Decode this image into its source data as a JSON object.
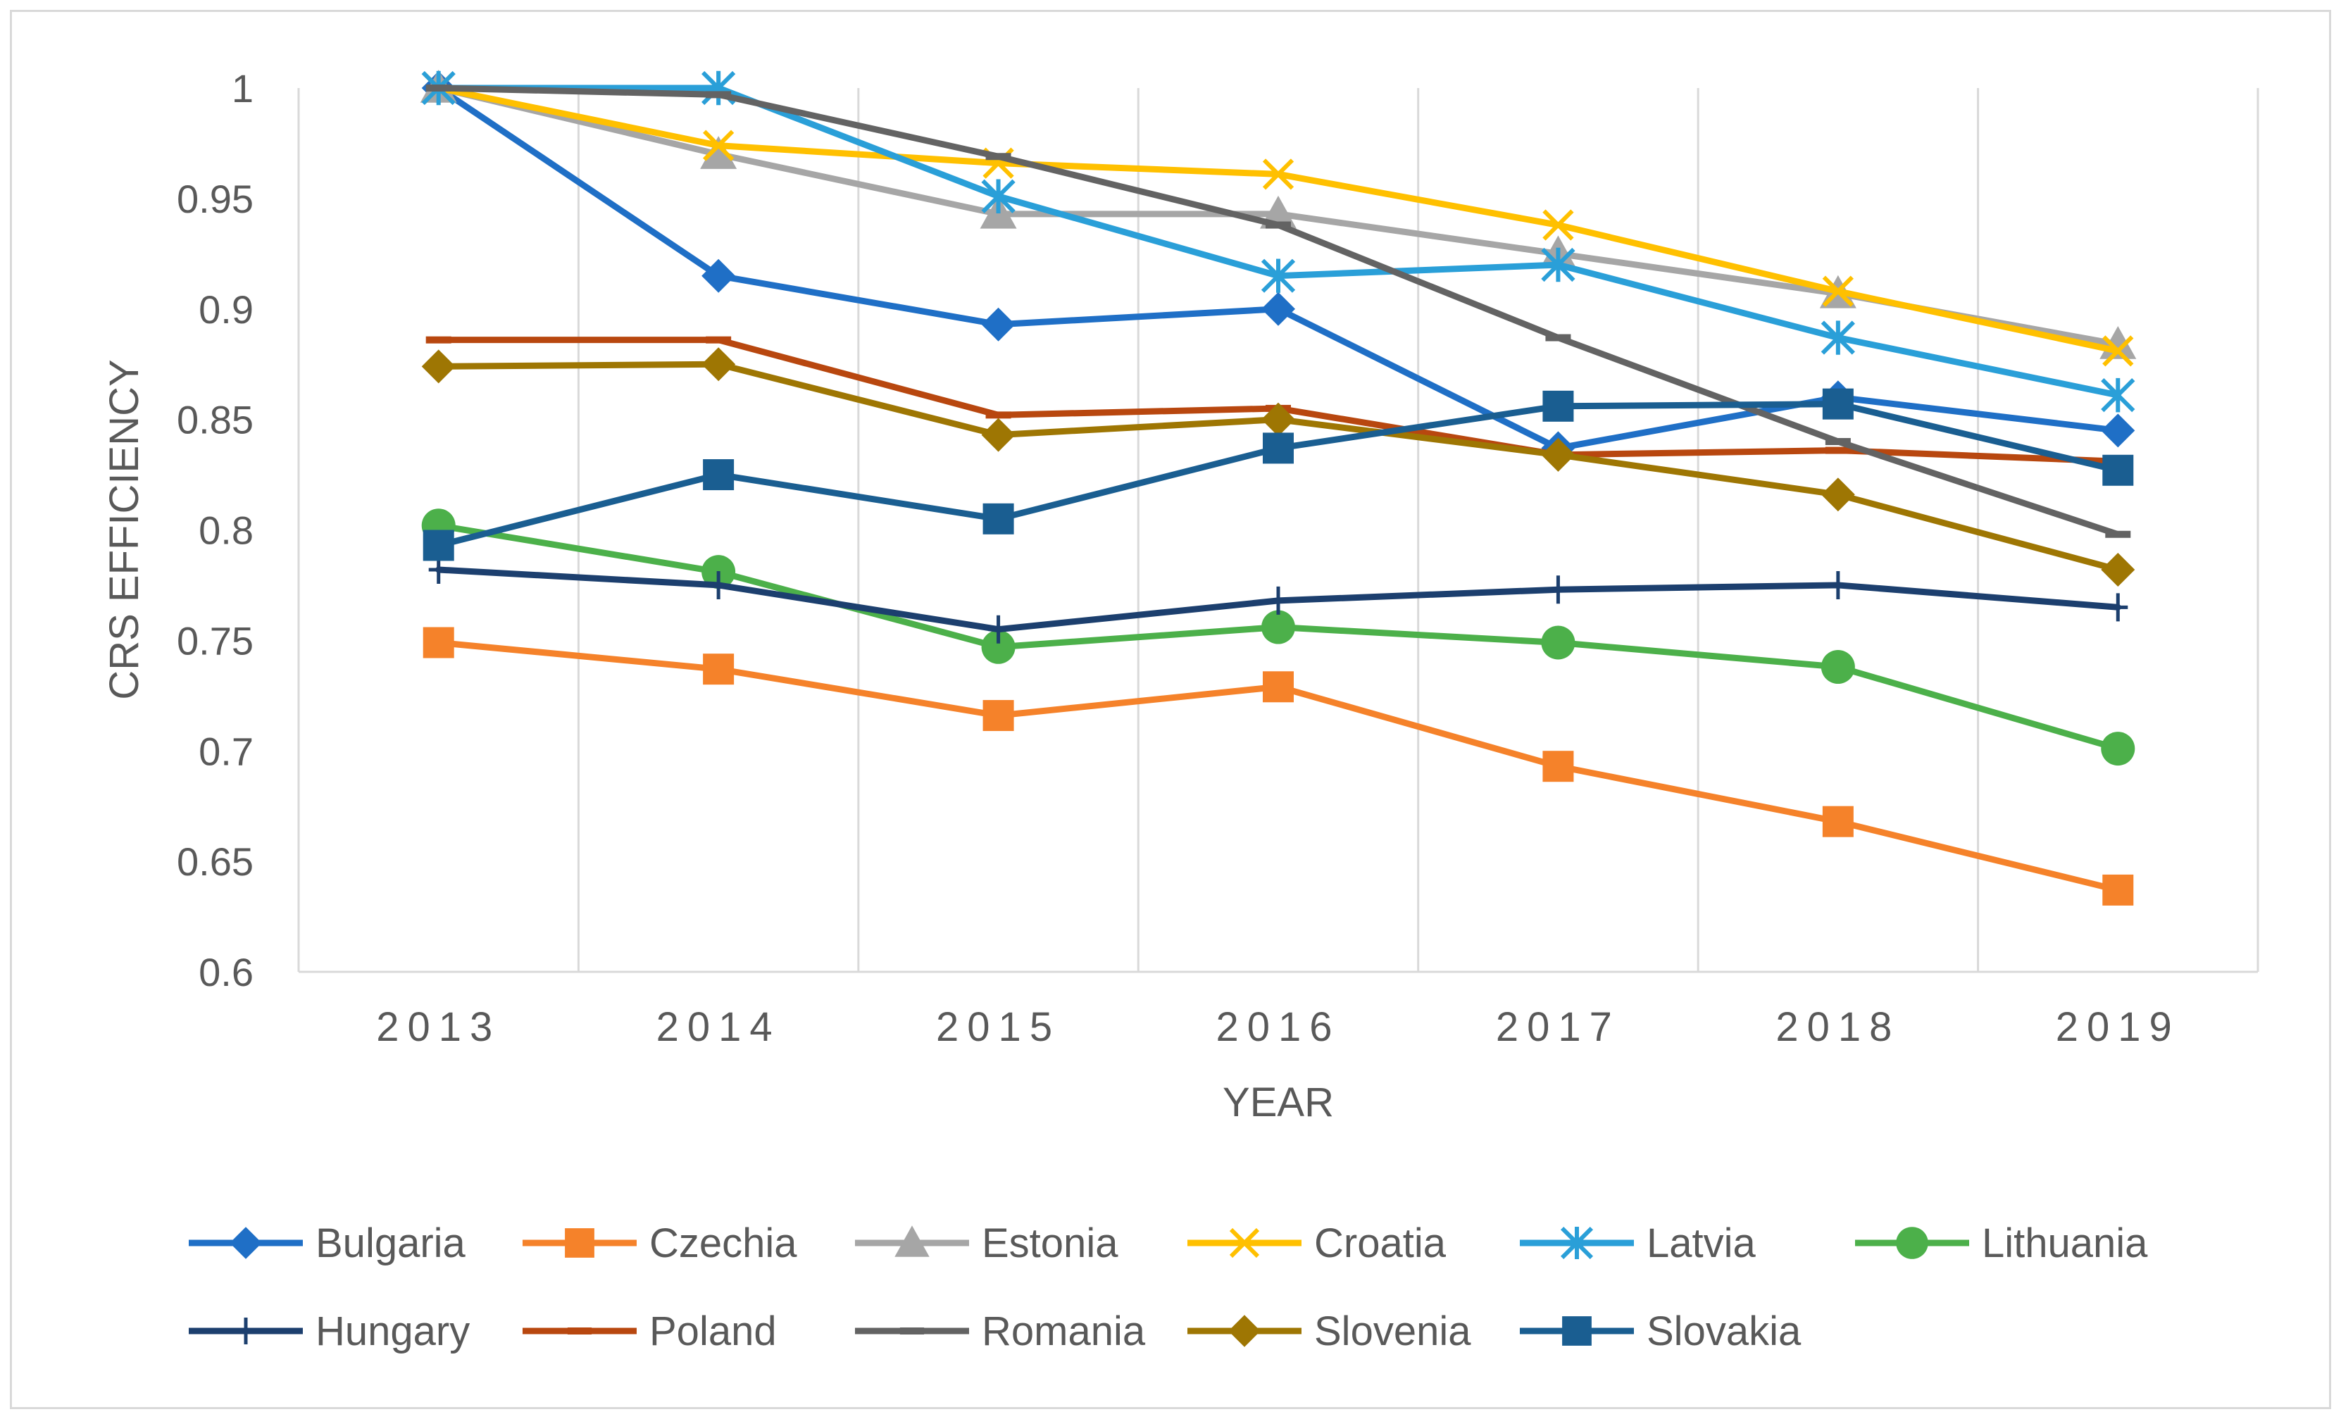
{
  "chart_data": {
    "type": "line",
    "title": "",
    "xlabel": "YEAR",
    "ylabel": "CRS EFFICIENCY",
    "ylim": [
      0.6,
      1.0
    ],
    "ytick_step": 0.05,
    "ytick_labels": [
      "0.6",
      "0.65",
      "0.7",
      "0.75",
      "0.8",
      "0.85",
      "0.9",
      "0.95",
      "1"
    ],
    "categories": [
      "2013",
      "2014",
      "2015",
      "2016",
      "2017",
      "2018",
      "2019"
    ],
    "grid": "vertical",
    "legend_position": "bottom",
    "series": [
      {
        "name": "Bulgaria",
        "color": "#1f6fc6",
        "marker": "diamond",
        "values": [
          1.0,
          0.915,
          0.893,
          0.9,
          0.837,
          0.86,
          0.845
        ]
      },
      {
        "name": "Czechia",
        "color": "#f5822a",
        "marker": "square",
        "values": [
          0.749,
          0.737,
          0.716,
          0.729,
          0.693,
          0.668,
          0.637
        ]
      },
      {
        "name": "Estonia",
        "color": "#a6a6a6",
        "marker": "triangle",
        "values": [
          1.0,
          0.97,
          0.943,
          0.943,
          0.925,
          0.907,
          0.884
        ]
      },
      {
        "name": "Croatia",
        "color": "#ffc000",
        "marker": "x",
        "values": [
          1.0,
          0.974,
          0.966,
          0.961,
          0.938,
          0.908,
          0.881
        ]
      },
      {
        "name": "Latvia",
        "color": "#2a9fd8",
        "marker": "star",
        "values": [
          1.0,
          1.0,
          0.951,
          0.915,
          0.92,
          0.887,
          0.861
        ]
      },
      {
        "name": "Lithuania",
        "color": "#4cb04a",
        "marker": "circle",
        "values": [
          0.802,
          0.781,
          0.747,
          0.756,
          0.749,
          0.738,
          0.701
        ]
      },
      {
        "name": "Hungary",
        "color": "#1c3f6e",
        "marker": "plus",
        "values": [
          0.782,
          0.775,
          0.755,
          0.768,
          0.773,
          0.775,
          0.765
        ]
      },
      {
        "name": "Poland",
        "color": "#b8470f",
        "marker": "dash",
        "values": [
          0.886,
          0.886,
          0.852,
          0.855,
          0.834,
          0.836,
          0.831
        ]
      },
      {
        "name": "Romania",
        "color": "#636363",
        "marker": "dash",
        "values": [
          1.0,
          0.997,
          0.969,
          0.938,
          0.887,
          0.84,
          0.798
        ]
      },
      {
        "name": "Slovenia",
        "color": "#9e7603",
        "marker": "diamond",
        "values": [
          0.874,
          0.875,
          0.843,
          0.85,
          0.834,
          0.816,
          0.782
        ]
      },
      {
        "name": "Slovakia",
        "color": "#1a5e91",
        "marker": "square",
        "values": [
          0.793,
          0.825,
          0.805,
          0.837,
          0.856,
          0.857,
          0.827
        ]
      }
    ]
  }
}
